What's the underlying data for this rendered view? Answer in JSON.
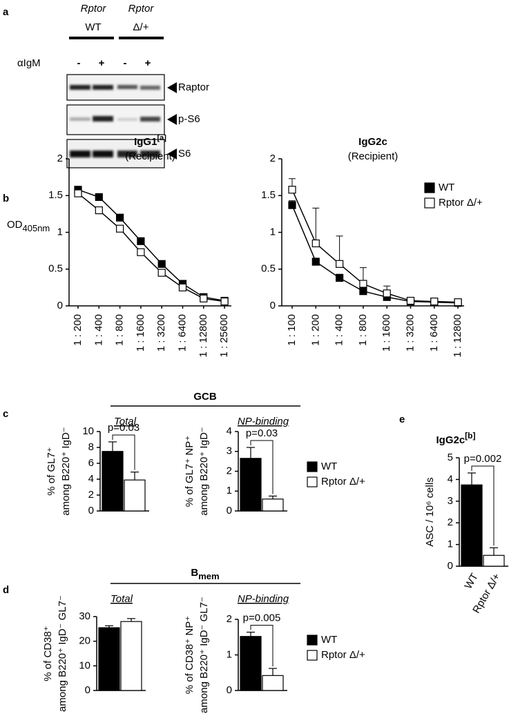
{
  "panels": [
    "a",
    "b",
    "c",
    "d",
    "e"
  ],
  "blot": {
    "header": [
      {
        "gene": "Rptor",
        "genotype": "WT"
      },
      {
        "gene": "Rptor",
        "genotype": "Δ/+"
      }
    ],
    "treatment_label": "αIgM",
    "treatments": [
      "-",
      "+",
      "-",
      "+"
    ],
    "bands": [
      "Raptor",
      "p-S6",
      "S6"
    ]
  },
  "groups": [
    {
      "title": "GCB"
    },
    {
      "title": "B",
      "title_sub": "mem"
    }
  ],
  "chart_data": [
    {
      "type": "line",
      "title": "IgG1",
      "title_sup": "[a]",
      "subtitle": "(Recipient)",
      "ylabel": "OD",
      "ylabel_sub": "405nm",
      "categories": [
        "1 : 200",
        "1 : 400",
        "1 : 800",
        "1 : 1600",
        "1 : 3200",
        "1 : 6400",
        "1 : 12800",
        "1 : 25600"
      ],
      "ylim": [
        0,
        2
      ],
      "yticks": [
        0,
        0.5,
        1,
        1.5,
        2
      ],
      "series": [
        {
          "color": "#000000",
          "values": [
            1.58,
            1.48,
            1.2,
            0.88,
            0.57,
            0.3,
            0.12,
            0.07
          ]
        },
        {
          "color": "#ffffff",
          "values": [
            1.53,
            1.3,
            1.05,
            0.73,
            0.45,
            0.25,
            0.1,
            0.06
          ]
        }
      ]
    },
    {
      "type": "line",
      "title": "IgG2c",
      "subtitle": "(Recipient)",
      "categories": [
        "1 : 100",
        "1 : 200",
        "1 : 400",
        "1 : 800",
        "1 : 1600",
        "1 : 3200",
        "1 : 6400",
        "1 : 12800"
      ],
      "ylim": [
        0,
        2
      ],
      "yticks": [
        0,
        0.5,
        1,
        1.5,
        2
      ],
      "legend": "right",
      "series": [
        {
          "name": "WT",
          "color": "#000000",
          "values": [
            1.37,
            0.6,
            0.38,
            0.2,
            0.12,
            0.06,
            0.05,
            0.04
          ],
          "errors": [
            0.06,
            0.05,
            0.05,
            0.04,
            0.03,
            0.02,
            0.02,
            0.02
          ]
        },
        {
          "name": "Rptor Δ/+",
          "color": "#ffffff",
          "values": [
            1.58,
            0.85,
            0.57,
            0.3,
            0.17,
            0.07,
            0.06,
            0.05
          ],
          "errors": [
            0.15,
            0.48,
            0.38,
            0.22,
            0.1,
            0.03,
            0.03,
            0.03
          ]
        }
      ]
    },
    {
      "type": "bar",
      "title": "Total",
      "ylabel": [
        "% of GL7⁺",
        "among B220⁺ IgD⁻"
      ],
      "values": [
        7.5,
        3.9
      ],
      "errors": [
        1.2,
        1.0
      ],
      "colors": [
        "#000000",
        "#ffffff"
      ],
      "ylim": [
        0,
        10
      ],
      "yticks": [
        0,
        2,
        4,
        6,
        8,
        10
      ],
      "pvalue": "p=0.03"
    },
    {
      "type": "bar",
      "title": "NP-binding",
      "ylabel": [
        "% of GL7⁺ NP⁺",
        "among B220⁺ IgD⁻"
      ],
      "values": [
        2.65,
        0.6
      ],
      "errors": [
        0.55,
        0.15
      ],
      "colors": [
        "#000000",
        "#ffffff"
      ],
      "ylim": [
        0,
        4
      ],
      "yticks": [
        0,
        1,
        2,
        3,
        4
      ],
      "pvalue": "p=0.03",
      "legend": [
        {
          "name": "WT",
          "color": "#000000"
        },
        {
          "name": "Rptor Δ/+",
          "color": "#ffffff"
        }
      ]
    },
    {
      "type": "bar",
      "title": "Total",
      "ylabel": [
        "% of CD38⁺",
        "among B220⁺ IgD⁻ GL7⁻"
      ],
      "values": [
        25.5,
        28
      ],
      "errors": [
        0.8,
        1.2
      ],
      "colors": [
        "#000000",
        "#ffffff"
      ],
      "ylim": [
        0,
        30
      ],
      "yticks": [
        0,
        10,
        20,
        30
      ]
    },
    {
      "type": "bar",
      "title": "NP-binding",
      "ylabel": [
        "% of CD38⁺ NP⁺",
        "among B220⁺ IgD⁻ GL7⁻"
      ],
      "values": [
        1.52,
        0.42
      ],
      "errors": [
        0.12,
        0.2
      ],
      "colors": [
        "#000000",
        "#ffffff"
      ],
      "ylim": [
        0,
        2
      ],
      "yticks": [
        0,
        1,
        2
      ],
      "pvalue": "p=0.005",
      "legend": [
        {
          "name": "WT",
          "color": "#000000"
        },
        {
          "name": "Rptor Δ/+",
          "color": "#ffffff"
        }
      ]
    },
    {
      "type": "bar",
      "title": "IgG2c",
      "title_sup": "[b]",
      "ylabel": [
        "ASC / 10⁶ cells"
      ],
      "categories": [
        "WT",
        "Rptor Δ/+"
      ],
      "values": [
        3.75,
        0.5
      ],
      "errors": [
        0.55,
        0.35
      ],
      "colors": [
        "#000000",
        "#ffffff"
      ],
      "ylim": [
        0,
        5
      ],
      "yticks": [
        0,
        1,
        2,
        3,
        4,
        5
      ],
      "pvalue": "p=0.002"
    }
  ]
}
